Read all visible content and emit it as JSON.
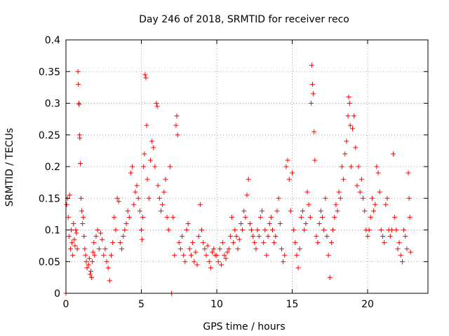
{
  "chart_data": {
    "type": "scatter",
    "title": "Day 246 of 2018, SRMTID for receiver reco",
    "xlabel": "GPS time / hours",
    "ylabel": "SRMTID / TECUs",
    "xlim": [
      0,
      24
    ],
    "ylim": [
      0,
      0.4
    ],
    "x_ticks": [
      0,
      5,
      10,
      15,
      20
    ],
    "y_ticks": [
      0,
      0.05,
      0.1,
      0.15,
      0.2,
      0.25,
      0.3,
      0.35,
      0.4
    ],
    "x_tick_labels": [
      "0",
      "5",
      "10",
      "15",
      "20"
    ],
    "y_tick_labels": [
      "0",
      "0.05",
      "0.1",
      "0.15",
      "0.2",
      "0.25",
      "0.3",
      "0.35",
      "0.4"
    ],
    "grid": true,
    "marker": "+",
    "color": "#ff0000",
    "series": [
      {
        "name": "SRMTID",
        "points": [
          [
            0.0,
            0.0
          ],
          [
            0.05,
            0.14
          ],
          [
            0.1,
            0.15
          ],
          [
            0.15,
            0.12
          ],
          [
            0.2,
            0.09
          ],
          [
            0.25,
            0.155
          ],
          [
            0.3,
            0.07
          ],
          [
            0.35,
            0.1
          ],
          [
            0.4,
            0.08
          ],
          [
            0.45,
            0.06
          ],
          [
            0.5,
            0.11
          ],
          [
            0.55,
            0.085
          ],
          [
            0.6,
            0.075
          ],
          [
            0.65,
            0.1
          ],
          [
            0.7,
            0.095
          ],
          [
            0.75,
            0.07
          ],
          [
            0.8,
            0.35
          ],
          [
            0.82,
            0.33
          ],
          [
            0.85,
            0.3
          ],
          [
            0.87,
            0.298
          ],
          [
            0.9,
            0.25
          ],
          [
            0.92,
            0.245
          ],
          [
            0.95,
            0.205
          ],
          [
            1.0,
            0.15
          ],
          [
            1.05,
            0.13
          ],
          [
            1.1,
            0.11
          ],
          [
            1.15,
            0.12
          ],
          [
            1.2,
            0.09
          ],
          [
            1.25,
            0.07
          ],
          [
            1.3,
            0.06
          ],
          [
            1.35,
            0.05
          ],
          [
            1.4,
            0.04
          ],
          [
            1.5,
            0.045
          ],
          [
            1.55,
            0.055
          ],
          [
            1.6,
            0.03
          ],
          [
            1.65,
            0.035
          ],
          [
            1.7,
            0.025
          ],
          [
            1.75,
            0.05
          ],
          [
            1.8,
            0.065
          ],
          [
            1.85,
            0.08
          ],
          [
            1.9,
            0.06
          ],
          [
            2.0,
            0.09
          ],
          [
            2.1,
            0.1
          ],
          [
            2.2,
            0.07
          ],
          [
            2.3,
            0.095
          ],
          [
            2.4,
            0.085
          ],
          [
            2.5,
            0.06
          ],
          [
            2.6,
            0.07
          ],
          [
            2.7,
            0.05
          ],
          [
            2.8,
            0.04
          ],
          [
            2.9,
            0.02
          ],
          [
            3.0,
            0.06
          ],
          [
            3.1,
            0.08
          ],
          [
            3.2,
            0.12
          ],
          [
            3.3,
            0.1
          ],
          [
            3.4,
            0.15
          ],
          [
            3.5,
            0.145
          ],
          [
            3.6,
            0.08
          ],
          [
            3.7,
            0.07
          ],
          [
            3.8,
            0.09
          ],
          [
            3.9,
            0.1
          ],
          [
            4.0,
            0.11
          ],
          [
            4.1,
            0.13
          ],
          [
            4.2,
            0.12
          ],
          [
            4.3,
            0.19
          ],
          [
            4.4,
            0.2
          ],
          [
            4.5,
            0.14
          ],
          [
            4.6,
            0.16
          ],
          [
            4.7,
            0.17
          ],
          [
            4.8,
            0.15
          ],
          [
            4.9,
            0.13
          ],
          [
            5.0,
            0.1
          ],
          [
            5.05,
            0.085
          ],
          [
            5.1,
            0.12
          ],
          [
            5.15,
            0.2
          ],
          [
            5.2,
            0.22
          ],
          [
            5.25,
            0.345
          ],
          [
            5.3,
            0.34
          ],
          [
            5.35,
            0.265
          ],
          [
            5.4,
            0.18
          ],
          [
            5.5,
            0.15
          ],
          [
            5.6,
            0.21
          ],
          [
            5.7,
            0.24
          ],
          [
            5.8,
            0.23
          ],
          [
            5.9,
            0.2
          ],
          [
            6.0,
            0.3
          ],
          [
            6.05,
            0.295
          ],
          [
            6.1,
            0.17
          ],
          [
            6.2,
            0.15
          ],
          [
            6.3,
            0.13
          ],
          [
            6.4,
            0.14
          ],
          [
            6.5,
            0.16
          ],
          [
            6.6,
            0.18
          ],
          [
            6.7,
            0.12
          ],
          [
            6.8,
            0.1
          ],
          [
            6.9,
            0.2
          ],
          [
            7.0,
            0.0
          ],
          [
            7.1,
            0.12
          ],
          [
            7.2,
            0.06
          ],
          [
            7.3,
            0.265
          ],
          [
            7.35,
            0.28
          ],
          [
            7.4,
            0.25
          ],
          [
            7.5,
            0.08
          ],
          [
            7.6,
            0.07
          ],
          [
            7.7,
            0.09
          ],
          [
            7.8,
            0.06
          ],
          [
            7.9,
            0.05
          ],
          [
            8.0,
            0.1
          ],
          [
            8.1,
            0.11
          ],
          [
            8.2,
            0.07
          ],
          [
            8.3,
            0.06
          ],
          [
            8.4,
            0.08
          ],
          [
            8.5,
            0.05
          ],
          [
            8.6,
            0.065
          ],
          [
            8.7,
            0.045
          ],
          [
            8.8,
            0.09
          ],
          [
            8.9,
            0.14
          ],
          [
            9.0,
            0.1
          ],
          [
            9.1,
            0.08
          ],
          [
            9.2,
            0.07
          ],
          [
            9.3,
            0.06
          ],
          [
            9.4,
            0.075
          ],
          [
            9.5,
            0.05
          ],
          [
            9.6,
            0.04
          ],
          [
            9.7,
            0.065
          ],
          [
            9.8,
            0.07
          ],
          [
            9.9,
            0.06
          ],
          [
            10.0,
            0.06
          ],
          [
            10.1,
            0.05
          ],
          [
            10.2,
            0.07
          ],
          [
            10.3,
            0.045
          ],
          [
            10.4,
            0.08
          ],
          [
            10.5,
            0.06
          ],
          [
            10.6,
            0.055
          ],
          [
            10.7,
            0.065
          ],
          [
            10.8,
            0.07
          ],
          [
            10.9,
            0.09
          ],
          [
            11.0,
            0.12
          ],
          [
            11.1,
            0.08
          ],
          [
            11.2,
            0.1
          ],
          [
            11.3,
            0.09
          ],
          [
            11.4,
            0.07
          ],
          [
            11.5,
            0.085
          ],
          [
            11.6,
            0.11
          ],
          [
            11.7,
            0.1
          ],
          [
            11.8,
            0.13
          ],
          [
            11.9,
            0.12
          ],
          [
            12.0,
            0.155
          ],
          [
            12.1,
            0.18
          ],
          [
            12.2,
            0.11
          ],
          [
            12.3,
            0.1
          ],
          [
            12.4,
            0.09
          ],
          [
            12.5,
            0.08
          ],
          [
            12.6,
            0.07
          ],
          [
            12.7,
            0.1
          ],
          [
            12.8,
            0.09
          ],
          [
            12.9,
            0.12
          ],
          [
            13.0,
            0.13
          ],
          [
            13.1,
            0.08
          ],
          [
            13.2,
            0.1
          ],
          [
            13.3,
            0.06
          ],
          [
            13.4,
            0.09
          ],
          [
            13.5,
            0.11
          ],
          [
            13.6,
            0.12
          ],
          [
            13.7,
            0.1
          ],
          [
            13.8,
            0.08
          ],
          [
            13.9,
            0.09
          ],
          [
            14.0,
            0.13
          ],
          [
            14.1,
            0.15
          ],
          [
            14.2,
            0.11
          ],
          [
            14.3,
            0.07
          ],
          [
            14.4,
            0.05
          ],
          [
            14.5,
            0.06
          ],
          [
            14.6,
            0.2
          ],
          [
            14.7,
            0.21
          ],
          [
            14.8,
            0.18
          ],
          [
            14.9,
            0.13
          ],
          [
            15.0,
            0.19
          ],
          [
            15.1,
            0.1
          ],
          [
            15.2,
            0.08
          ],
          [
            15.3,
            0.06
          ],
          [
            15.4,
            0.04
          ],
          [
            15.5,
            0.07
          ],
          [
            15.6,
            0.12
          ],
          [
            15.7,
            0.13
          ],
          [
            15.8,
            0.1
          ],
          [
            15.9,
            0.11
          ],
          [
            16.0,
            0.16
          ],
          [
            16.1,
            0.14
          ],
          [
            16.2,
            0.12
          ],
          [
            16.25,
            0.3
          ],
          [
            16.3,
            0.36
          ],
          [
            16.35,
            0.33
          ],
          [
            16.4,
            0.315
          ],
          [
            16.45,
            0.255
          ],
          [
            16.5,
            0.21
          ],
          [
            16.6,
            0.09
          ],
          [
            16.7,
            0.08
          ],
          [
            16.8,
            0.11
          ],
          [
            16.9,
            0.13
          ],
          [
            17.0,
            0.12
          ],
          [
            17.1,
            0.1
          ],
          [
            17.2,
            0.15
          ],
          [
            17.3,
            0.09
          ],
          [
            17.4,
            0.06
          ],
          [
            17.5,
            0.025
          ],
          [
            17.6,
            0.08
          ],
          [
            17.7,
            0.1
          ],
          [
            17.8,
            0.12
          ],
          [
            17.9,
            0.14
          ],
          [
            18.0,
            0.13
          ],
          [
            18.1,
            0.16
          ],
          [
            18.2,
            0.15
          ],
          [
            18.3,
            0.2
          ],
          [
            18.4,
            0.18
          ],
          [
            18.5,
            0.22
          ],
          [
            18.6,
            0.24
          ],
          [
            18.7,
            0.28
          ],
          [
            18.75,
            0.31
          ],
          [
            18.8,
            0.3
          ],
          [
            18.85,
            0.265
          ],
          [
            18.9,
            0.2
          ],
          [
            19.0,
            0.26
          ],
          [
            19.1,
            0.28
          ],
          [
            19.2,
            0.23
          ],
          [
            19.3,
            0.17
          ],
          [
            19.4,
            0.2
          ],
          [
            19.5,
            0.16
          ],
          [
            19.6,
            0.18
          ],
          [
            19.7,
            0.15
          ],
          [
            19.8,
            0.13
          ],
          [
            19.9,
            0.1
          ],
          [
            20.0,
            0.09
          ],
          [
            20.1,
            0.1
          ],
          [
            20.2,
            0.12
          ],
          [
            20.3,
            0.15
          ],
          [
            20.4,
            0.13
          ],
          [
            20.5,
            0.14
          ],
          [
            20.6,
            0.2
          ],
          [
            20.7,
            0.19
          ],
          [
            20.8,
            0.16
          ],
          [
            20.9,
            0.1
          ],
          [
            21.0,
            0.09
          ],
          [
            21.1,
            0.08
          ],
          [
            21.2,
            0.14
          ],
          [
            21.3,
            0.15
          ],
          [
            21.4,
            0.1
          ],
          [
            21.5,
            0.09
          ],
          [
            21.6,
            0.1
          ],
          [
            21.7,
            0.22
          ],
          [
            21.8,
            0.12
          ],
          [
            21.9,
            0.1
          ],
          [
            22.0,
            0.07
          ],
          [
            22.1,
            0.08
          ],
          [
            22.2,
            0.06
          ],
          [
            22.3,
            0.05
          ],
          [
            22.4,
            0.1
          ],
          [
            22.5,
            0.09
          ],
          [
            22.6,
            0.07
          ],
          [
            22.7,
            0.19
          ],
          [
            22.75,
            0.15
          ],
          [
            22.8,
            0.12
          ],
          [
            22.85,
            0.065
          ]
        ]
      }
    ]
  }
}
